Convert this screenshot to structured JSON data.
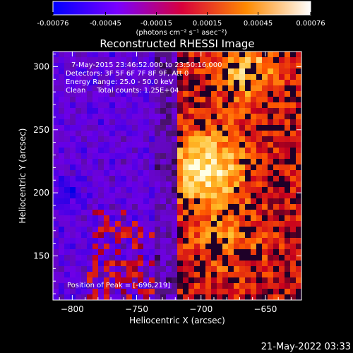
{
  "chart_data": {
    "type": "heatmap",
    "title": "Reconstructed RHESSI Image",
    "xlabel": "Heliocentric X (arcsec)",
    "ylabel": "Heliocentric Y (arcsec)",
    "xlim": [
      -815,
      -622
    ],
    "ylim": [
      115,
      312
    ],
    "x_ticks": [
      -800,
      -750,
      -700,
      -650
    ],
    "y_ticks": [
      150,
      200,
      250,
      300
    ],
    "colorbar": {
      "range": [
        -0.00076,
        0.00076
      ],
      "ticks": [
        "-0.00076",
        "-0.00045",
        "-0.00015",
        "0.00015",
        "0.00045",
        "0.00076"
      ],
      "units": "(photons cm⁻² s⁻¹ asec⁻²)",
      "colormap": [
        "#0000ff",
        "#8000ff",
        "#ff0000",
        "#ffa500",
        "#ffffff"
      ]
    },
    "annotations": [
      "7-May-2015 23:46:52.000 to 23:50:16.000",
      "Detectors: 3F 5F 6F 7F 8F 9F, Att 0",
      "Energy Range: 25.0 - 50.0 keV",
      "Clean     Total counts: 1.25E+04"
    ],
    "peak_label": "Position of Peak = [-696,219]",
    "peak": [
      -696,
      219
    ]
  },
  "footer": {
    "timestamp": "21-May-2022 03:33"
  }
}
